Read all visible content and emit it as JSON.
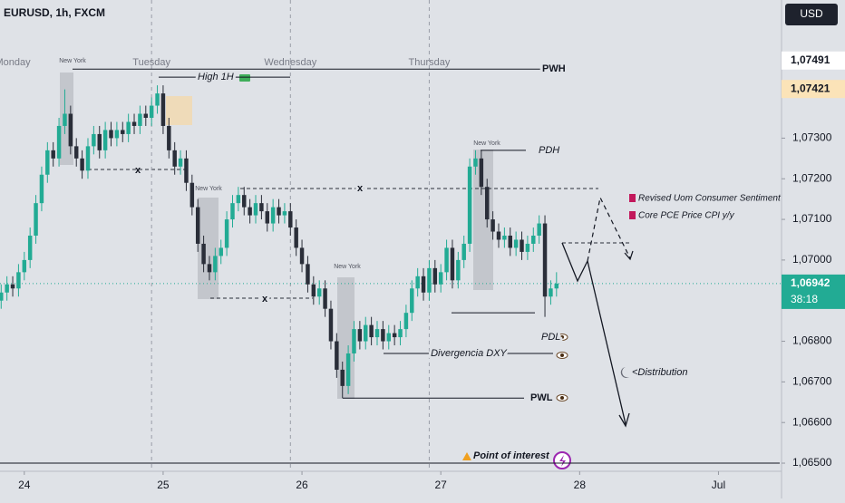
{
  "header": {
    "symbol": "EURUSD, 1h, FXCM",
    "currency": "USD"
  },
  "chart_data": {
    "type": "candlestick",
    "x": [
      -4,
      -3,
      -2,
      -1,
      0,
      1,
      2,
      3,
      4,
      5,
      6,
      7,
      8,
      9,
      10,
      11,
      12,
      13,
      14,
      15,
      16,
      17,
      18,
      19,
      20,
      21,
      22,
      23,
      24,
      25,
      26,
      27,
      28,
      29,
      30,
      31,
      32,
      33,
      34,
      35,
      36,
      37,
      38,
      39,
      40,
      41,
      42,
      43,
      44,
      45,
      46,
      47,
      48,
      49,
      50,
      51,
      52,
      53,
      54,
      55,
      56,
      57,
      58,
      59,
      60,
      61,
      62,
      63,
      64,
      65,
      66,
      67,
      68,
      69,
      70,
      71,
      72,
      73,
      74,
      75,
      76,
      77,
      78,
      79,
      80,
      81,
      82,
      83,
      84,
      85,
      86,
      87,
      88,
      89,
      90,
      91,
      92
    ],
    "open": [
      1.069,
      1.0692,
      1.0694,
      1.0693,
      1.0697,
      1.07,
      1.0706,
      1.0714,
      1.0721,
      1.0727,
      1.0725,
      1.0733,
      1.0736,
      1.0728,
      1.0725,
      1.0722,
      1.0728,
      1.0731,
      1.0727,
      1.0732,
      1.073,
      1.0732,
      1.0731,
      1.0734,
      1.0733,
      1.0736,
      1.0735,
      1.0738,
      1.0741,
      1.0733,
      1.0727,
      1.0723,
      1.0725,
      1.0719,
      1.0713,
      1.0704,
      1.0699,
      1.0697,
      1.0701,
      1.0703,
      1.071,
      1.0714,
      1.0716,
      1.0713,
      1.0711,
      1.0714,
      1.0712,
      1.0709,
      1.0713,
      1.0711,
      1.0712,
      1.0708,
      1.0703,
      1.0699,
      1.0694,
      1.0691,
      1.0693,
      1.0688,
      1.068,
      1.0673,
      1.0669,
      1.0677,
      1.0683,
      1.068,
      1.0684,
      1.0681,
      1.0683,
      1.068,
      1.0682,
      1.0681,
      1.0683,
      1.0687,
      1.0693,
      1.0696,
      1.0692,
      1.0698,
      1.0694,
      1.0697,
      1.0703,
      1.0695,
      1.07,
      1.0704,
      1.0723,
      1.0725,
      1.0718,
      1.071,
      1.0707,
      1.0705,
      1.0706,
      1.0703,
      1.0705,
      1.0702,
      1.0704,
      1.0706,
      1.0709,
      1.0691,
      1.0693
    ],
    "high": [
      1.0694,
      1.0696,
      1.0696,
      1.0699,
      1.0702,
      1.0708,
      1.0716,
      1.0723,
      1.0729,
      1.0729,
      1.0735,
      1.0742,
      1.0738,
      1.073,
      1.0727,
      1.073,
      1.0733,
      1.0733,
      1.0734,
      1.0734,
      1.0734,
      1.0734,
      1.0736,
      1.0736,
      1.0738,
      1.0738,
      1.074,
      1.0743,
      1.0743,
      1.0735,
      1.0729,
      1.0727,
      1.0727,
      1.0721,
      1.0715,
      1.0706,
      1.0701,
      1.0703,
      1.0705,
      1.0712,
      1.0716,
      1.0718,
      1.0718,
      1.0715,
      1.0716,
      1.0716,
      1.0714,
      1.0715,
      1.0715,
      1.0714,
      1.0714,
      1.071,
      1.0705,
      1.0701,
      1.0696,
      1.0695,
      1.0695,
      1.069,
      1.0682,
      1.0675,
      1.0679,
      1.0685,
      1.0685,
      1.0686,
      1.0686,
      1.0685,
      1.0685,
      1.0684,
      1.0684,
      1.0685,
      1.0689,
      1.0695,
      1.0698,
      1.0698,
      1.07,
      1.07,
      1.0699,
      1.0705,
      1.0705,
      1.0702,
      1.0706,
      1.0725,
      1.0727,
      1.0727,
      1.072,
      1.0712,
      1.0709,
      1.0708,
      1.0708,
      1.0707,
      1.0707,
      1.0706,
      1.0708,
      1.0711,
      1.0711,
      1.0695,
      1.0697
    ],
    "low": [
      1.0688,
      1.069,
      1.0691,
      1.0691,
      1.0695,
      1.0698,
      1.0704,
      1.0712,
      1.0719,
      1.0723,
      1.0723,
      1.0731,
      1.0726,
      1.0723,
      1.072,
      1.072,
      1.0726,
      1.0725,
      1.0725,
      1.0728,
      1.0728,
      1.0729,
      1.0729,
      1.0731,
      1.0731,
      1.0733,
      1.0733,
      1.0736,
      1.0731,
      1.0725,
      1.0721,
      1.0721,
      1.0717,
      1.0711,
      1.0702,
      1.0697,
      1.0695,
      1.0695,
      1.0699,
      1.0701,
      1.0708,
      1.0712,
      1.0711,
      1.0709,
      1.0709,
      1.071,
      1.0707,
      1.0707,
      1.0709,
      1.0709,
      1.0706,
      1.0701,
      1.0697,
      1.0692,
      1.0689,
      1.0689,
      1.0686,
      1.0678,
      1.0671,
      1.0666,
      1.0667,
      1.0675,
      1.0678,
      1.0678,
      1.0679,
      1.0679,
      1.0678,
      1.0678,
      1.0679,
      1.0679,
      1.0681,
      1.0685,
      1.0691,
      1.069,
      1.069,
      1.0692,
      1.0692,
      1.0695,
      1.0693,
      1.0693,
      1.0698,
      1.0702,
      1.0721,
      1.0716,
      1.0708,
      1.0705,
      1.0703,
      1.0703,
      1.0701,
      1.0701,
      1.07,
      1.07,
      1.0702,
      1.0704,
      1.0686,
      1.0689,
      1.0691
    ],
    "close": [
      1.0692,
      1.0694,
      1.0693,
      1.0697,
      1.07,
      1.0706,
      1.0714,
      1.0721,
      1.0727,
      1.0725,
      1.0733,
      1.0736,
      1.0728,
      1.0725,
      1.0722,
      1.0728,
      1.0731,
      1.0727,
      1.0732,
      1.073,
      1.0732,
      1.0731,
      1.0734,
      1.0733,
      1.0736,
      1.0735,
      1.0738,
      1.0741,
      1.0733,
      1.0727,
      1.0723,
      1.0725,
      1.0719,
      1.0713,
      1.0704,
      1.0699,
      1.0697,
      1.0701,
      1.0703,
      1.071,
      1.0714,
      1.0716,
      1.0713,
      1.0711,
      1.0714,
      1.0712,
      1.0709,
      1.0713,
      1.0711,
      1.0712,
      1.0708,
      1.0703,
      1.0699,
      1.0694,
      1.0691,
      1.0693,
      1.0688,
      1.068,
      1.0673,
      1.0669,
      1.0677,
      1.0683,
      1.068,
      1.0684,
      1.0681,
      1.0683,
      1.068,
      1.0682,
      1.0681,
      1.0683,
      1.0687,
      1.0693,
      1.0696,
      1.0692,
      1.0698,
      1.0694,
      1.0697,
      1.0703,
      1.0695,
      1.07,
      1.0704,
      1.0723,
      1.0725,
      1.0718,
      1.071,
      1.0707,
      1.0705,
      1.0706,
      1.0703,
      1.0705,
      1.0702,
      1.0704,
      1.0706,
      1.0709,
      1.0691,
      1.0693,
      1.06942
    ],
    "up_color": "#22ab94",
    "down_color": "#2a2e39",
    "xlim": [
      -4.2,
      130.9
    ],
    "xticks": [
      {
        "value": 0,
        "label": "24"
      },
      {
        "value": 24,
        "label": "25"
      },
      {
        "value": 48,
        "label": "26"
      },
      {
        "value": 72,
        "label": "27"
      },
      {
        "value": 96,
        "label": "28"
      },
      {
        "value": 120,
        "label": "Jul"
      }
    ],
    "ylim": [
      1.0648,
      1.0764
    ],
    "yticks": [
      {
        "value": 1.065,
        "label": "1,06500"
      },
      {
        "value": 1.066,
        "label": "1,06600"
      },
      {
        "value": 1.067,
        "label": "1,06700"
      },
      {
        "value": 1.068,
        "label": "1,06800"
      },
      {
        "value": 1.07,
        "label": "1,07000"
      },
      {
        "value": 1.071,
        "label": "1,07100"
      },
      {
        "value": 1.072,
        "label": "1,07200"
      },
      {
        "value": 1.073,
        "label": "1,07300"
      }
    ],
    "day_labels": [
      "Monday",
      "Tuesday",
      "Wednesday",
      "Thursday"
    ],
    "session_labels": [
      "New York",
      "New York",
      "New York",
      "New York"
    ],
    "levels": [
      {
        "label": "PWH",
        "value": 1.0747
      },
      {
        "label": "High 1H",
        "value": 1.0745
      },
      {
        "label": "PDH",
        "value": 1.0727
      },
      {
        "label": "PDL",
        "value": 1.0687
      },
      {
        "label": "Divergencia DXY",
        "value": 1.0677
      },
      {
        "label": "PWL",
        "value": 1.0666
      },
      {
        "label": "Point of interest",
        "value": 1.065
      }
    ],
    "markers": [
      "x",
      "x",
      "x"
    ],
    "events": [
      "Revised Uom Consumer Sentiment",
      "Core PCE Price CPI y/y"
    ],
    "projection_label": "<Distribution",
    "price_labels": [
      {
        "value": 1.07491,
        "label": "1,07491",
        "color": "#ffffff"
      },
      {
        "value": 1.07421,
        "label": "1,07421",
        "color": "#fbe3b8"
      },
      {
        "value": 1.06942,
        "label": "1,06942",
        "color": "#22ab94"
      }
    ],
    "countdown": "38:18"
  }
}
